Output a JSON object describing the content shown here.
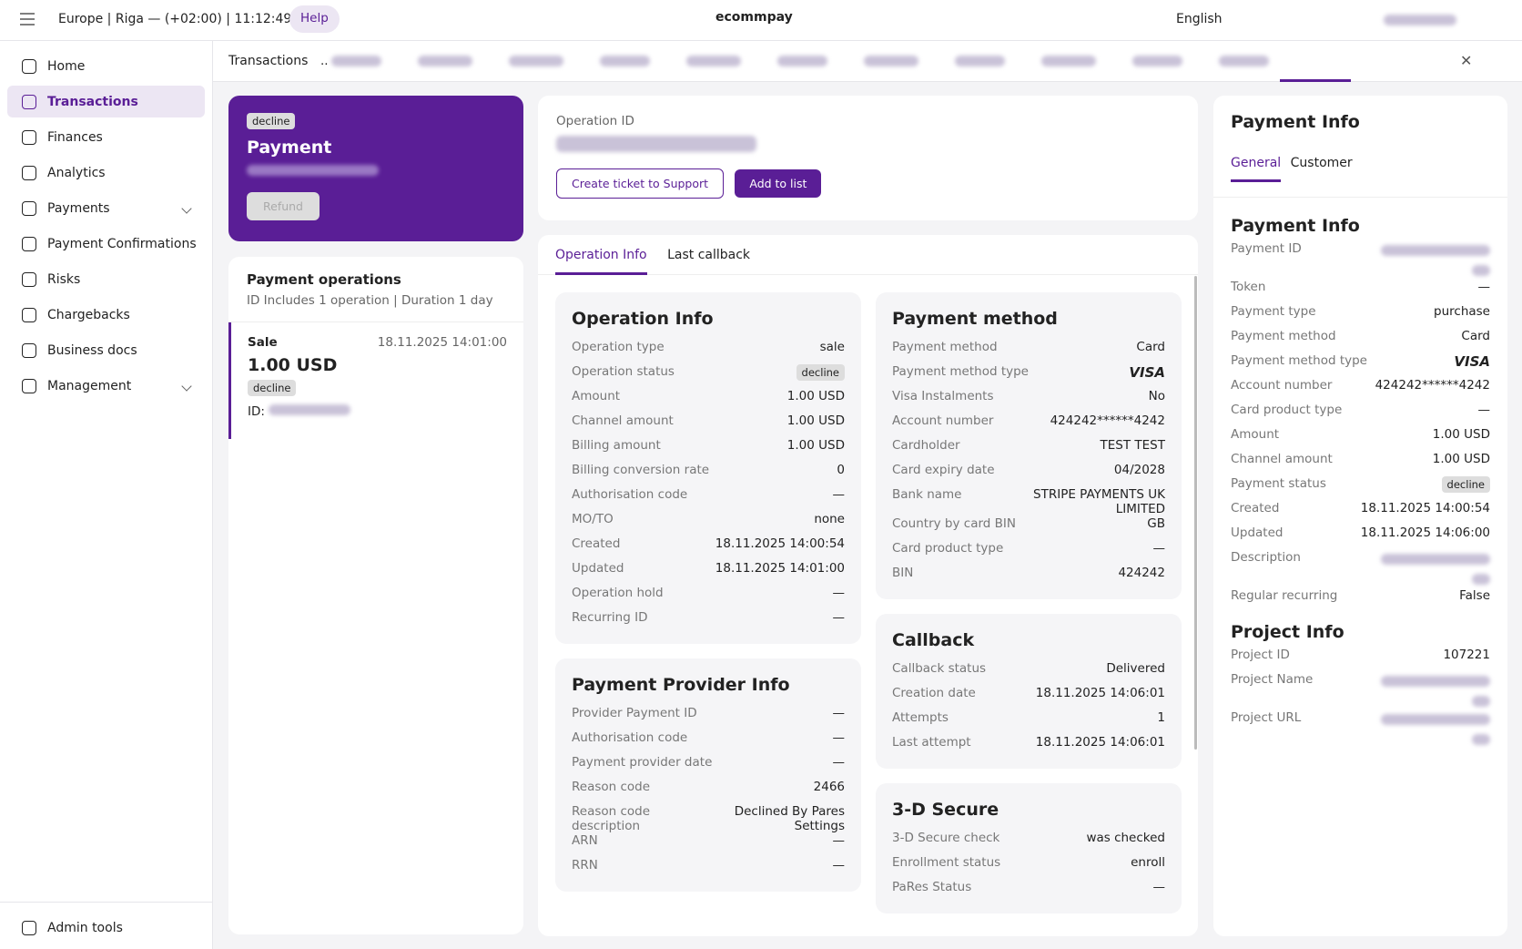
{
  "topbar": {
    "timezone": "Europe | Riga — (+02:00) | 11:12:49",
    "help": "Help",
    "logo": "ecommpay",
    "language": "English"
  },
  "sidebar": {
    "items": [
      "Home",
      "Transactions",
      "Finances",
      "Analytics",
      "Payments",
      "Payment Confirmations",
      "Risks",
      "Chargebacks",
      "Business docs",
      "Management"
    ],
    "active": 1,
    "expandable": [
      4,
      9
    ],
    "footer": "Admin tools"
  },
  "tabs": {
    "first": "Transactions",
    "ellipsis": ".."
  },
  "payment_card": {
    "badge": "decline",
    "title": "Payment",
    "button": "Refund"
  },
  "operations": {
    "title": "Payment operations",
    "subtitle": "ID Includes 1 operation | Duration 1 day",
    "item": {
      "type": "Sale",
      "date": "18.11.2025 14:01:00",
      "amount": "1.00 USD",
      "status": "decline",
      "id_label": "ID:"
    }
  },
  "operation_header": {
    "label": "Operation ID",
    "buttons": [
      "Create ticket to Support",
      "Add to list"
    ]
  },
  "detail_tabs": [
    "Operation Info",
    "Last callback"
  ],
  "left_sections": [
    {
      "title": "Operation Info",
      "rows": [
        {
          "label": "Operation type",
          "value": "sale"
        },
        {
          "label": "Operation status",
          "value": "decline",
          "style": "badge"
        },
        {
          "label": "Amount",
          "value": "1.00 USD"
        },
        {
          "label": "Channel amount",
          "value": "1.00 USD"
        },
        {
          "label": "Billing amount",
          "value": "1.00 USD"
        },
        {
          "label": "Billing conversion rate",
          "value": "0"
        },
        {
          "label": "Authorisation code",
          "value": "—"
        },
        {
          "label": "MO/TO",
          "value": "none"
        },
        {
          "label": "Created",
          "value": "18.11.2025 14:00:54"
        },
        {
          "label": "Updated",
          "value": "18.11.2025 14:01:00"
        },
        {
          "label": "Operation hold",
          "value": "—"
        },
        {
          "label": "Recurring ID",
          "value": "—"
        }
      ]
    },
    {
      "title": "Payment Provider Info",
      "rows": [
        {
          "label": "Provider Payment ID",
          "value": "—"
        },
        {
          "label": "Authorisation code",
          "value": "—"
        },
        {
          "label": "Payment provider date",
          "value": "—"
        },
        {
          "label": "Reason code",
          "value": "2466"
        },
        {
          "label": "Reason code description",
          "value": "Declined By Pares Settings"
        },
        {
          "label": "ARN",
          "value": "—"
        },
        {
          "label": "RRN",
          "value": "—"
        }
      ]
    }
  ],
  "right_sections": [
    {
      "title": "Payment method",
      "rows": [
        {
          "label": "Payment method",
          "value": "Card"
        },
        {
          "label": "Payment method type",
          "value": "VISA",
          "style": "brand"
        },
        {
          "label": "Visa Instalments",
          "value": "No"
        },
        {
          "label": "Account number",
          "value": "424242******4242"
        },
        {
          "label": "Cardholder",
          "value": "TEST TEST"
        },
        {
          "label": "Card expiry date",
          "value": "04/2028"
        },
        {
          "label": "Bank name",
          "value": "STRIPE PAYMENTS UK LIMITED"
        },
        {
          "label": "Country by card BIN",
          "value": "GB"
        },
        {
          "label": "Card product type",
          "value": "—"
        },
        {
          "label": "BIN",
          "value": "424242"
        }
      ]
    },
    {
      "title": "Callback",
      "rows": [
        {
          "label": "Callback status",
          "value": "Delivered"
        },
        {
          "label": "Creation date",
          "value": "18.11.2025 14:06:01"
        },
        {
          "label": "Attempts",
          "value": "1"
        },
        {
          "label": "Last attempt",
          "value": "18.11.2025 14:06:01"
        }
      ]
    },
    {
      "title": "3-D Secure",
      "rows": [
        {
          "label": "3-D Secure check",
          "value": "was checked"
        },
        {
          "label": "Enrollment status",
          "value": "enroll"
        },
        {
          "label": "PaRes Status",
          "value": "—"
        }
      ]
    }
  ],
  "info_panel": {
    "title": "Payment Info",
    "tabs": [
      "General",
      "Customer"
    ],
    "sections": [
      {
        "title": "Payment Info",
        "rows": [
          {
            "label": "Payment ID",
            "value": null
          },
          {
            "label": "Token",
            "value": "—"
          },
          {
            "label": "Payment type",
            "value": "purchase"
          },
          {
            "label": "Payment method",
            "value": "Card"
          },
          {
            "label": "Payment method type",
            "value": "VISA",
            "style": "brand"
          },
          {
            "label": "Account number",
            "value": "424242******4242"
          },
          {
            "label": "Card product type",
            "value": "—"
          },
          {
            "label": "Amount",
            "value": "1.00 USD"
          },
          {
            "label": "Channel amount",
            "value": "1.00 USD"
          },
          {
            "label": "Payment status",
            "value": "decline",
            "style": "badge"
          },
          {
            "label": "Created",
            "value": "18.11.2025 14:00:54"
          },
          {
            "label": "Updated",
            "value": "18.11.2025 14:06:00"
          },
          {
            "label": "Description",
            "value": null
          },
          {
            "label": "Regular recurring",
            "value": "False"
          }
        ]
      },
      {
        "title": "Project Info",
        "rows": [
          {
            "label": "Project ID",
            "value": "107221"
          },
          {
            "label": "Project Name",
            "value": null
          },
          {
            "label": "Project URL",
            "value": null
          }
        ]
      }
    ]
  }
}
